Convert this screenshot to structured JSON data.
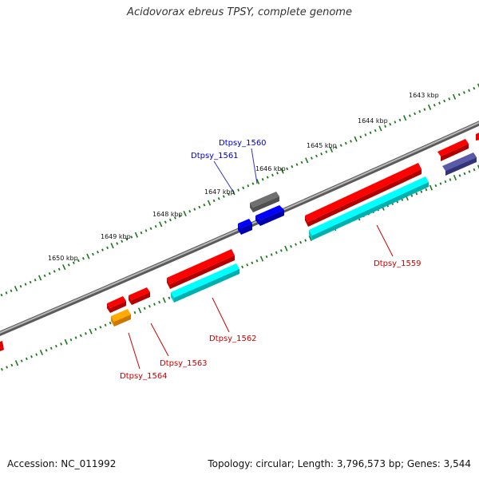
{
  "title": "Acidovorax ebreus TPSY, complete genome",
  "footer": {
    "accession": "Accession: NC_011992",
    "summary": "Topology: circular; Length: 3,796,573 bp; Genes: 3,544"
  },
  "kbp_labels": [
    "1643 kbp",
    "1644 kbp",
    "1645 kbp",
    "1646 kbp",
    "1647 kbp",
    "1648 kbp",
    "1649 kbp",
    "1650 kbp"
  ],
  "gene_labels": [
    {
      "text": "Dtpsy_1560",
      "color": "#0000cc"
    },
    {
      "text": "Dtpsy_1561",
      "color": "#0000cc"
    },
    {
      "text": "Dtpsy_1559",
      "color": "#cc0000"
    },
    {
      "text": "Dtpsy_1562",
      "color": "#cc0000"
    },
    {
      "text": "Dtpsy_1563",
      "color": "#cc0000"
    },
    {
      "text": "Dtpsy_1564",
      "color": "#cc0000"
    }
  ],
  "colors": {
    "backbone": "#808080",
    "tick": "#1a7a1a",
    "red": "#ff0000",
    "cyan": "#00e5e5",
    "blue": "#0000ff",
    "gray": "#707070",
    "navy": "#4a4a9a",
    "orange": "#ff9900"
  }
}
